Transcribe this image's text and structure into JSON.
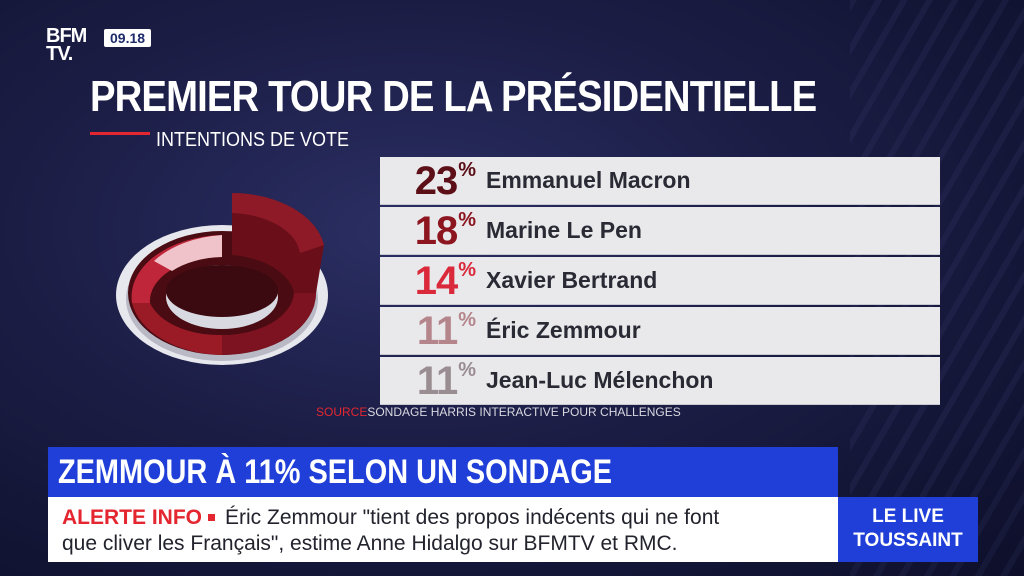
{
  "brand": {
    "logo_line1": "BFM",
    "logo_line2": "TV.",
    "time": "09.18"
  },
  "title": "PREMIER TOUR DE LA PRÉSIDENTIELLE",
  "subtitle": "INTENTIONS DE VOTE",
  "results": [
    {
      "percent": "23",
      "symbol": "%",
      "candidate": "Emmanuel Macron",
      "color": "#5c0f16"
    },
    {
      "percent": "18",
      "symbol": "%",
      "candidate": "Marine Le Pen",
      "color": "#8c1520"
    },
    {
      "percent": "14",
      "symbol": "%",
      "candidate": "Xavier Bertrand",
      "color": "#d9293b"
    },
    {
      "percent": "11",
      "symbol": "%",
      "candidate": "Éric Zemmour",
      "color": "#b5858c"
    },
    {
      "percent": "11",
      "symbol": "%",
      "candidate": "Jean-Luc Mélenchon",
      "color": "#9a8d91"
    }
  ],
  "source": {
    "label": "SOURCE",
    "text": "SONDAGE HARRIS INTERACTIVE POUR CHALLENGES"
  },
  "headline": "ZEMMOUR À 11% SELON UN SONDAGE",
  "ticker": {
    "alert_label": "ALERTE INFO",
    "line1": "Éric Zemmour \"tient des propos indécents qui ne font",
    "line2": "que cliver les Français\", estime Anne Hidalgo sur BFMTV et RMC."
  },
  "live_badge": {
    "line1": "LE LIVE",
    "line2": "TOUSSAINT"
  },
  "colors": {
    "accent_red": "#e3262f",
    "banner_blue": "#1f3fd8",
    "background": "#1b1d45"
  }
}
